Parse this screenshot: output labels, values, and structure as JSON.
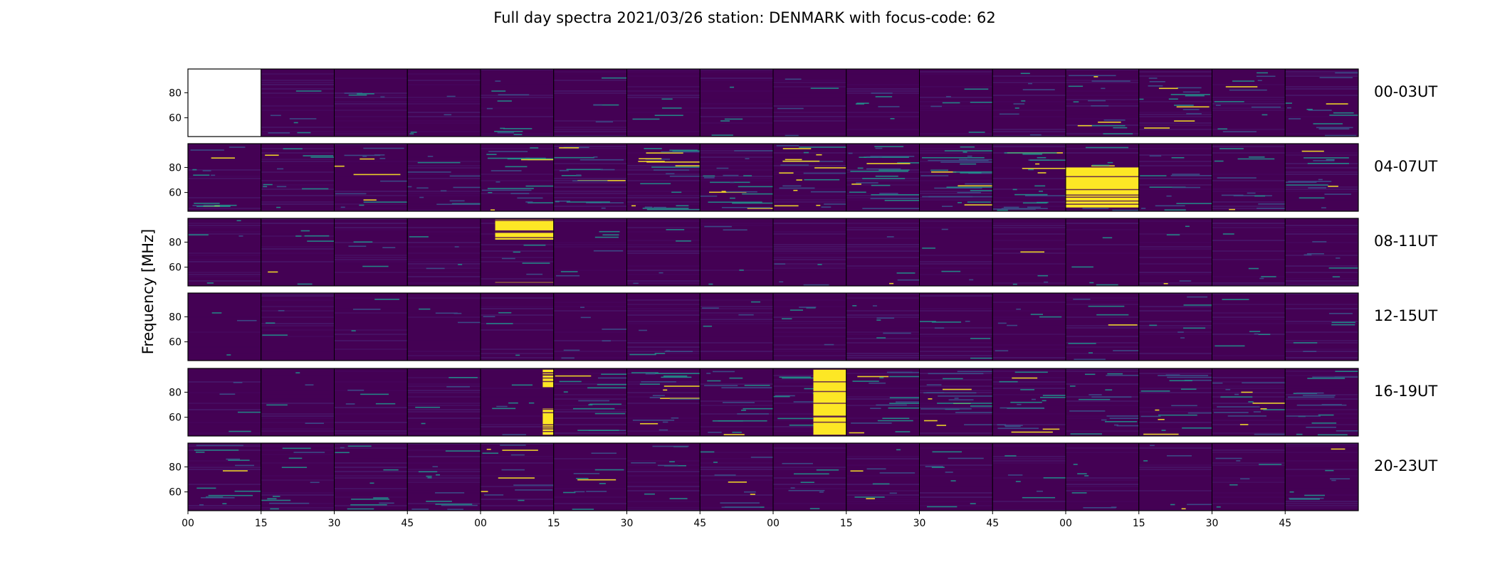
{
  "chart_data": {
    "type": "heatmap",
    "title": "Full day spectra 2021/03/26 station: DENMARK with focus-code: 62",
    "ylabel": "Frequency [MHz]",
    "xlabel": "",
    "colormap": "viridis",
    "colors": {
      "low": "#440154",
      "mid": "#21918c",
      "high": "#fde725",
      "empty": "#ffffff"
    },
    "ylim": [
      45,
      99
    ],
    "y_ticks": [
      60,
      80
    ],
    "y_tick_labels": [
      "60",
      "80"
    ],
    "x_tick_labels": [
      "00",
      "15",
      "30",
      "45",
      "00",
      "15",
      "30",
      "45",
      "00",
      "15",
      "30",
      "45",
      "00",
      "15",
      "30",
      "45"
    ],
    "panels_per_row": 16,
    "panel_minutes": 15,
    "rows": [
      {
        "label": "00-03UT",
        "empty_panels": [
          0
        ],
        "saturated": [],
        "activity": [
          0.05,
          0.15,
          0.1,
          0.1,
          0.25,
          0.1,
          0.1,
          0.1,
          0.1,
          0.15,
          0.15,
          0.2,
          0.35,
          0.4,
          0.3,
          0.35
        ]
      },
      {
        "label": "04-07UT",
        "empty_panels": [],
        "saturated": [
          {
            "panel": 12,
            "start": 0.0,
            "end": 1.0,
            "fmin": 48,
            "fmax": 80
          }
        ],
        "activity": [
          0.3,
          0.25,
          0.35,
          0.3,
          0.5,
          0.45,
          0.55,
          0.5,
          0.55,
          0.6,
          0.7,
          0.55,
          0.3,
          0.3,
          0.3,
          0.35
        ]
      },
      {
        "label": "08-11UT",
        "empty_panels": [],
        "saturated": [
          {
            "panel": 4,
            "start": 0.2,
            "end": 1.0,
            "fmin": 82,
            "fmax": 98
          },
          {
            "panel": 4,
            "start": 0.2,
            "end": 1.0,
            "fmin": 46,
            "fmax": 48
          }
        ],
        "activity": [
          0.1,
          0.15,
          0.1,
          0.1,
          0.15,
          0.15,
          0.1,
          0.1,
          0.1,
          0.1,
          0.1,
          0.1,
          0.1,
          0.1,
          0.1,
          0.15
        ]
      },
      {
        "label": "12-15UT",
        "empty_panels": [],
        "saturated": [],
        "activity": [
          0.08,
          0.08,
          0.08,
          0.1,
          0.1,
          0.15,
          0.12,
          0.1,
          0.12,
          0.15,
          0.15,
          0.15,
          0.2,
          0.15,
          0.12,
          0.12
        ]
      },
      {
        "label": "16-19UT",
        "empty_panels": [],
        "saturated": [
          {
            "panel": 4,
            "start": 0.85,
            "end": 1.0,
            "fmin": 46,
            "fmax": 67
          },
          {
            "panel": 4,
            "start": 0.85,
            "end": 1.0,
            "fmin": 84,
            "fmax": 98
          },
          {
            "panel": 8,
            "start": 0.55,
            "end": 1.0,
            "fmin": 46,
            "fmax": 98
          }
        ],
        "activity": [
          0.1,
          0.1,
          0.1,
          0.1,
          0.15,
          0.35,
          0.45,
          0.4,
          0.3,
          0.45,
          0.5,
          0.45,
          0.4,
          0.4,
          0.4,
          0.45
        ]
      },
      {
        "label": "20-23UT",
        "empty_panels": [],
        "saturated": [],
        "activity": [
          0.35,
          0.25,
          0.25,
          0.3,
          0.3,
          0.25,
          0.2,
          0.25,
          0.2,
          0.2,
          0.2,
          0.15,
          0.15,
          0.15,
          0.15,
          0.2
        ]
      }
    ]
  }
}
